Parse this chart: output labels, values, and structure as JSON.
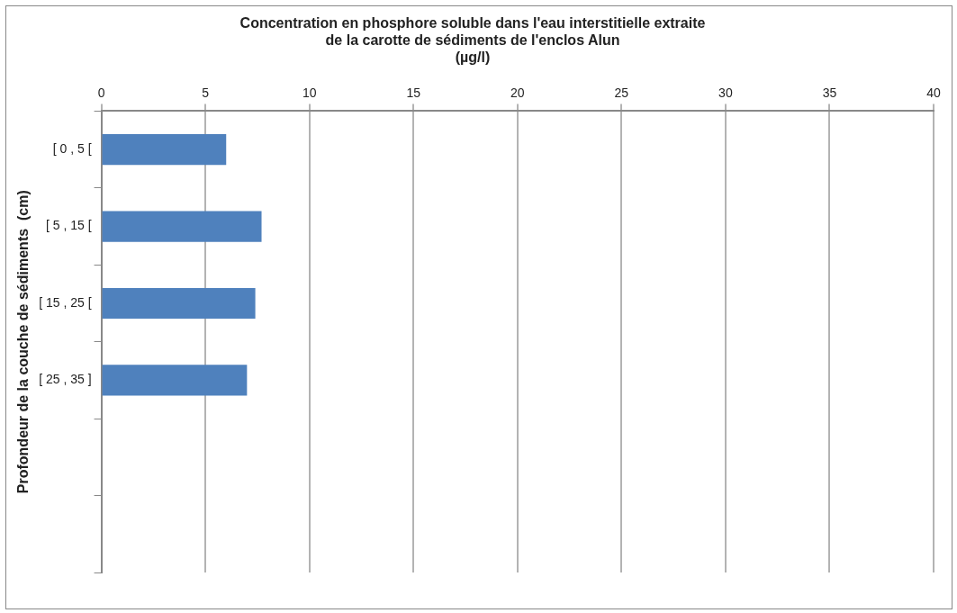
{
  "chart_data": {
    "type": "bar",
    "orientation": "horizontal",
    "title": "Concentration en phosphore soluble dans l'eau interstitielle extraite\nde la carotte de sédiments de l'enclos Alun\n(µg/l)",
    "ylabel": "Profondeur de la couche de sédiments  (cm)",
    "categories": [
      "[ 0 , 5 [",
      "[ 5 , 15 [",
      "[ 15 , 25 [",
      "[ 25 , 35 ]",
      null,
      null
    ],
    "values": [
      6.0,
      7.7,
      7.4,
      7.0,
      null,
      null
    ],
    "color": "#4f81bd",
    "xlim": [
      0,
      40
    ],
    "xticks": [
      0,
      5,
      10,
      15,
      20,
      25,
      30,
      35,
      40
    ],
    "grid": "x",
    "legend": false
  }
}
